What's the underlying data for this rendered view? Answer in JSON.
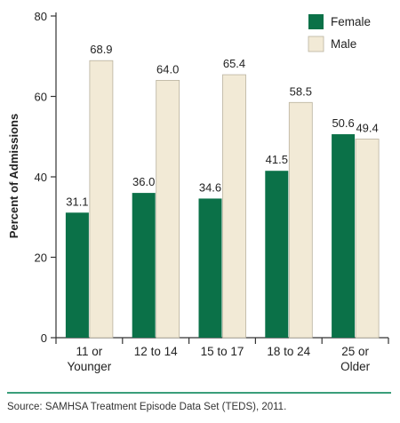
{
  "chart_data": {
    "type": "bar",
    "categories": [
      [
        "11 or",
        "Younger"
      ],
      [
        "12 to 14"
      ],
      [
        "15 to 17"
      ],
      [
        "18 to 24"
      ],
      [
        "25 or",
        "Older"
      ]
    ],
    "series": [
      {
        "name": "Female",
        "values": [
          31.1,
          36.0,
          34.6,
          41.5,
          50.6
        ],
        "labels": [
          "31.1",
          "36.0",
          "34.6",
          "41.5",
          "50.6"
        ],
        "color": "#0b7148"
      },
      {
        "name": "Male",
        "values": [
          68.9,
          64.0,
          65.4,
          58.5,
          49.4
        ],
        "labels": [
          "68.9",
          "64.0",
          "65.4",
          "58.5",
          "49.4"
        ],
        "color": "#f2ead6"
      }
    ],
    "ylabel": "Percent of Admissions",
    "ylim": [
      0,
      80
    ],
    "yticks": [
      0,
      20,
      40,
      60,
      80
    ],
    "legend": "top-right",
    "grid": false
  },
  "source": "Source: SAMHSA Treatment Episode Data Set (TEDS), 2011."
}
